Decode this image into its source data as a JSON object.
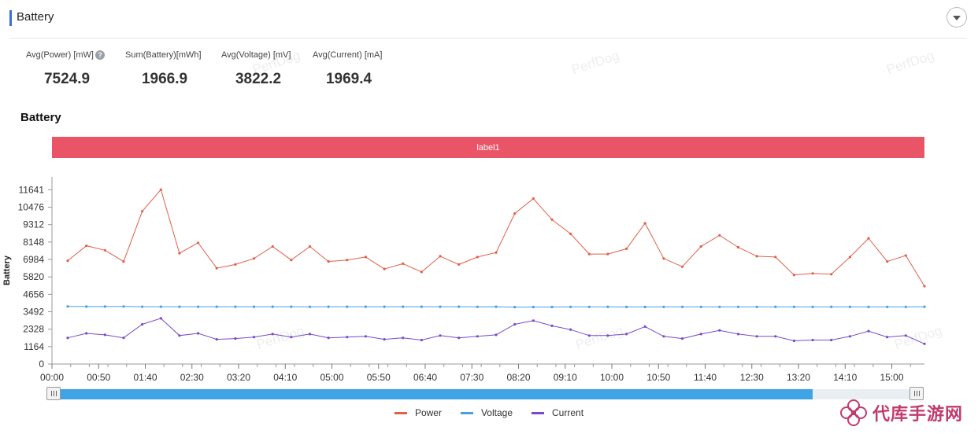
{
  "header": {
    "title": "Battery"
  },
  "stats": [
    {
      "label": "Avg(Power) [mW]",
      "value": "7524.9",
      "help": "?"
    },
    {
      "label": "Sum(Battery)[mWh]",
      "value": "1966.9"
    },
    {
      "label": "Avg(Voltage) [mV]",
      "value": "3822.2"
    },
    {
      "label": "Avg(Current) [mA]",
      "value": "1969.4"
    }
  ],
  "watermark": "PerfDog",
  "chart_title": "Battery",
  "label_band": "label1",
  "brand": {
    "name": "代库手游网",
    "logo": "flower-logo"
  },
  "colors": {
    "power": "#e0604a",
    "voltage": "#4a9fe0",
    "current": "#7a4ac8",
    "label_band": "#e95566",
    "slider": "#3fa3e6",
    "title_bar": "#3a6fd8"
  },
  "chart_data": {
    "type": "line",
    "title": "",
    "ylabel": "Battery",
    "xlabel": "",
    "ylim": [
      0,
      12500
    ],
    "yticks": [
      "0",
      "1164",
      "2328",
      "3492",
      "4656",
      "5820",
      "6984",
      "8148",
      "9312",
      "10476",
      "11641"
    ],
    "xticks": [
      "00:00",
      "00:50",
      "01:40",
      "02:30",
      "03:20",
      "04:10",
      "05:00",
      "05:50",
      "06:40",
      "07:30",
      "08:20",
      "09:10",
      "10:00",
      "10:50",
      "11:40",
      "12:30",
      "13:20",
      "14:10",
      "15:00"
    ],
    "x_range_seconds": [
      0,
      935
    ],
    "x_step_seconds": 20,
    "legend": "bottom-center",
    "grid": false,
    "slider_range": [
      0,
      0.88
    ],
    "series": [
      {
        "name": "Power",
        "color": "#e0604a",
        "values": [
          6900,
          7900,
          7600,
          6850,
          10200,
          11650,
          7400,
          8100,
          6400,
          6650,
          7050,
          7850,
          6950,
          7850,
          6850,
          6950,
          7150,
          6350,
          6700,
          6150,
          7200,
          6650,
          7150,
          7450,
          10050,
          11050,
          9650,
          8700,
          7350,
          7350,
          7700,
          9400,
          7050,
          6500,
          7850,
          8600,
          7800,
          7200,
          7150,
          5950,
          6050,
          6000,
          7150,
          8400,
          6850,
          7250,
          5200
        ]
      },
      {
        "name": "Voltage",
        "color": "#4a9fe0",
        "values": [
          3850,
          3840,
          3840,
          3845,
          3830,
          3830,
          3830,
          3830,
          3830,
          3830,
          3830,
          3830,
          3830,
          3825,
          3830,
          3830,
          3830,
          3830,
          3830,
          3830,
          3830,
          3830,
          3825,
          3830,
          3800,
          3810,
          3810,
          3820,
          3820,
          3825,
          3815,
          3815,
          3820,
          3820,
          3820,
          3820,
          3820,
          3820,
          3825,
          3825,
          3820,
          3825,
          3820,
          3820,
          3820,
          3820,
          3830
        ]
      },
      {
        "name": "Current",
        "color": "#7a4ac8",
        "values": [
          1750,
          2050,
          1950,
          1750,
          2650,
          3050,
          1900,
          2050,
          1650,
          1700,
          1800,
          2000,
          1800,
          2000,
          1750,
          1800,
          1850,
          1650,
          1750,
          1600,
          1900,
          1750,
          1850,
          1950,
          2650,
          2900,
          2550,
          2300,
          1900,
          1900,
          2000,
          2500,
          1850,
          1700,
          2000,
          2250,
          2000,
          1850,
          1850,
          1550,
          1600,
          1600,
          1850,
          2200,
          1800,
          1900,
          1350
        ]
      }
    ]
  }
}
